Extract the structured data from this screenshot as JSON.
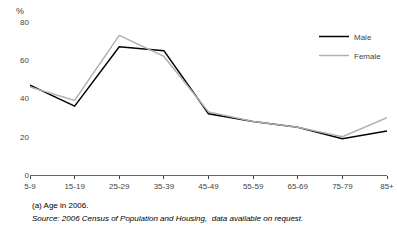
{
  "chart_data": {
    "type": "line",
    "categories": [
      "5-9",
      "15-19",
      "25-29",
      "35-39",
      "45-49",
      "55-59",
      "65-69",
      "75-79",
      "85+"
    ],
    "series": [
      {
        "name": "Male",
        "color": "#000000",
        "values": [
          47,
          36,
          67,
          65,
          32,
          28,
          25,
          19,
          23
        ]
      },
      {
        "name": "Female",
        "color": "#b0b0b0",
        "values": [
          46,
          39,
          73,
          62,
          33,
          28,
          25,
          20,
          30
        ]
      }
    ],
    "ylim": [
      0,
      80
    ],
    "yticks": [
      0,
      20,
      40,
      60,
      80
    ],
    "ylabel": "%",
    "annotations": [
      "(a) Age in 2006.",
      "Source: 2006 Census of Population and Housing,  data available on request."
    ],
    "grid": false,
    "legend": "upper right"
  }
}
